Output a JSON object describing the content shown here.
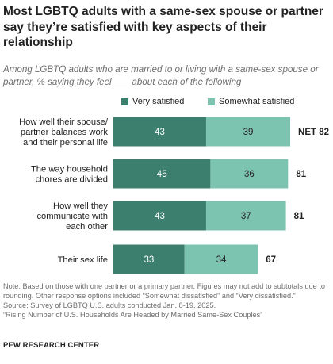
{
  "title": "Most LGBTQ adults with a same-sex spouse or partner say they’re satisfied with key aspects of their relationship",
  "subtitle": "Among LGBTQ adults who are married to or living with a same-sex spouse or partner, % saying they feel ___ about each of the following",
  "colors": {
    "very_satisfied": "#3d7f6e",
    "somewhat_satisfied": "#7dc4b0",
    "value_text": "#ffffff"
  },
  "chart_data": {
    "type": "bar",
    "stacked": true,
    "orientation": "horizontal",
    "categories": [
      [
        "How well their spouse/",
        "partner balances work",
        "and their personal life"
      ],
      [
        "The way household",
        "chores are divided"
      ],
      [
        "How well they",
        "communicate with",
        "each other"
      ],
      [
        "Their sex life"
      ]
    ],
    "series": [
      {
        "name": "Very satisfied",
        "values": [
          43,
          45,
          43,
          33
        ]
      },
      {
        "name": "Somewhat satisfied",
        "values": [
          39,
          36,
          37,
          34
        ]
      }
    ],
    "net_labels": [
      "NET 82",
      "81",
      "81",
      "67"
    ],
    "legend_position": "top",
    "grid": false
  },
  "notes": [
    "Note: Based on those with one partner or a primary partner. Figures may not add to subtotals due to rounding. Other response options included “Somewhat dissatisfied” and “Very dissatisfied.”",
    "Source: Survey of LGBTQ U.S. adults conducted Jan. 8-19, 2025.",
    "“Rising Number of U.S. Households Are Headed by Married Same-Sex Couples”"
  ],
  "footer": "PEW RESEARCH CENTER"
}
